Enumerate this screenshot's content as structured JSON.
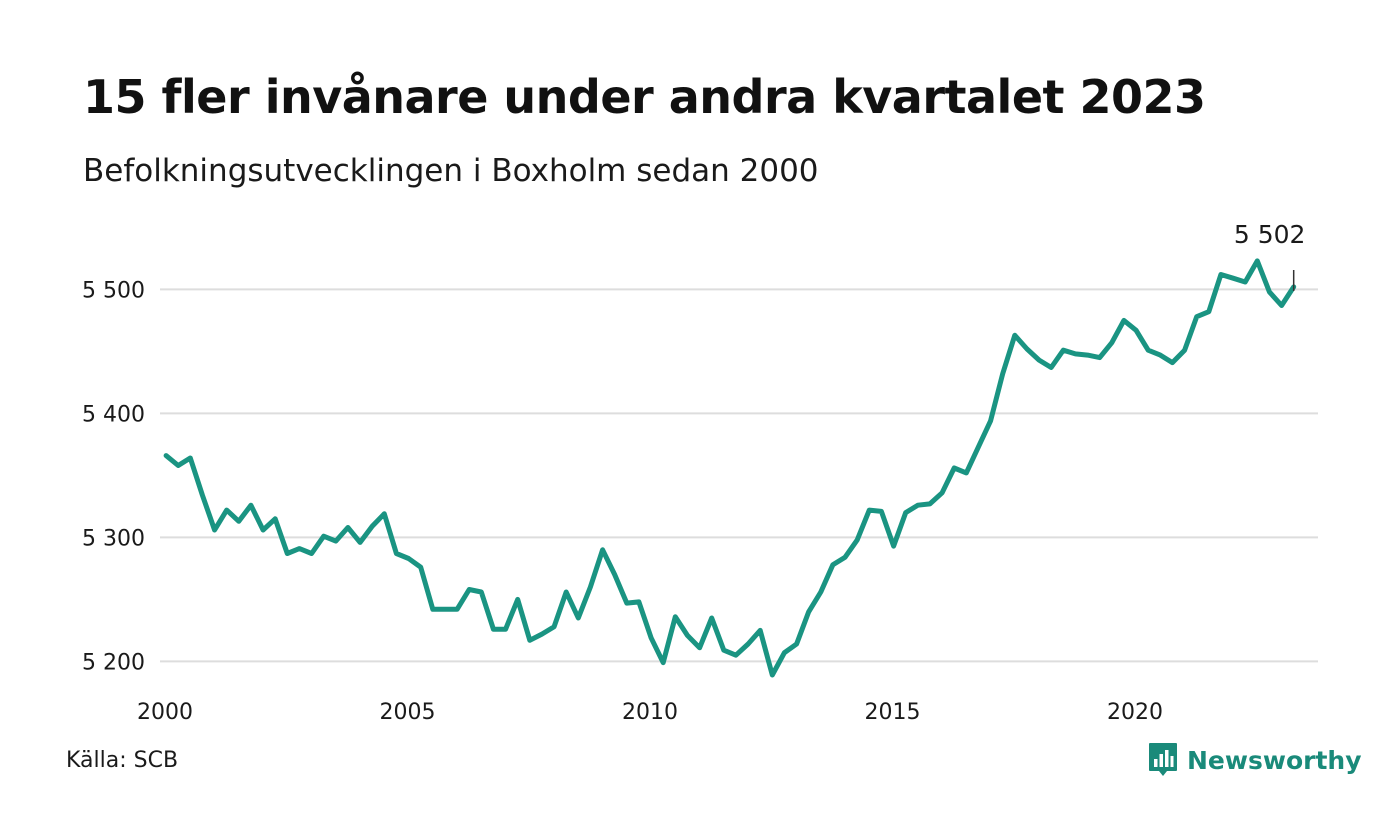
{
  "header": {
    "title": "15 fler invånare under andra kvartalet 2023",
    "subtitle": "Befolkningsutvecklingen i Boxholm sedan 2000"
  },
  "footer": {
    "source": "Källa: SCB",
    "brand": "Newsworthy",
    "brand_icon": "bar-chart-speech-bubble-icon"
  },
  "colors": {
    "line": "#1a9482",
    "grid": "#dddddd",
    "brand": "#1a8a7a"
  },
  "chart_data": {
    "type": "line",
    "x_tick_labels": [
      "2000",
      "2005",
      "2010",
      "2015",
      "2020"
    ],
    "y_tick_labels": [
      "5 200",
      "5 300",
      "5 400",
      "5 500"
    ],
    "y_ticks": [
      5200,
      5300,
      5400,
      5500
    ],
    "ylim": [
      5185,
      5560
    ],
    "xlim": [
      2000.0,
      2024.0
    ],
    "grid": "horizontal",
    "x_start_year": 2000,
    "x_period": "quarter",
    "annotation": {
      "label": "5 502",
      "value": 5502,
      "position": "last-point"
    },
    "values": [
      5366,
      5358,
      5364,
      5334,
      5306,
      5322,
      5313,
      5326,
      5306,
      5315,
      5287,
      5291,
      5287,
      5301,
      5297,
      5308,
      5296,
      5309,
      5319,
      5287,
      5283,
      5276,
      5242,
      5242,
      5242,
      5258,
      5256,
      5226,
      5226,
      5250,
      5217,
      5222,
      5228,
      5256,
      5235,
      5260,
      5290,
      5270,
      5247,
      5248,
      5219,
      5199,
      5236,
      5221,
      5211,
      5235,
      5209,
      5205,
      5214,
      5225,
      5189,
      5207,
      5214,
      5240,
      5256,
      5278,
      5284,
      5298,
      5322,
      5321,
      5293,
      5320,
      5326,
      5327,
      5336,
      5356,
      5352,
      5373,
      5394,
      5432,
      5463,
      5452,
      5443,
      5437,
      5451,
      5448,
      5447,
      5445,
      5457,
      5475,
      5467,
      5451,
      5447,
      5441,
      5451,
      5478,
      5482,
      5512,
      5509,
      5506,
      5523,
      5498,
      5487,
      5502
    ]
  }
}
